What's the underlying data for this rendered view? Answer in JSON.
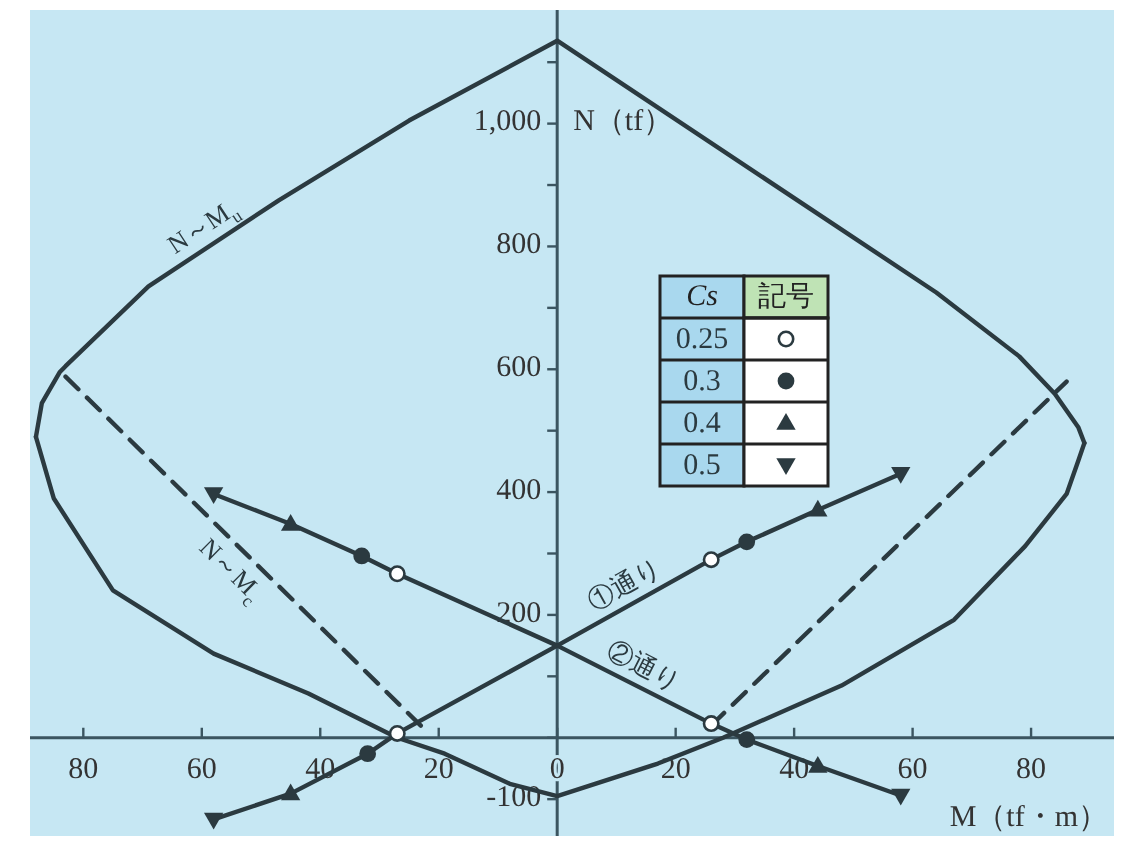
{
  "chart_data": {
    "type": "line",
    "xlabel": "M（tf・m）",
    "ylabel": "N（tf）",
    "legend_title": "Cs",
    "legend": "right",
    "annotations": [
      "記号"
    ],
    "xlim": [
      -89,
      94
    ],
    "ylim": [
      -160,
      1185
    ],
    "xticks": [
      {
        "value": -80,
        "label": "80"
      },
      {
        "value": -60,
        "label": "60"
      },
      {
        "value": -40,
        "label": "40"
      },
      {
        "value": -20,
        "label": "20"
      },
      0,
      20,
      40,
      60,
      80
    ],
    "yticks": [
      -100,
      {
        "value": 0,
        "label": null
      },
      {
        "value": 100,
        "label": null
      },
      200,
      {
        "value": 300,
        "label": null
      },
      400,
      {
        "value": 500,
        "label": null
      },
      600,
      {
        "value": 700,
        "label": null
      },
      800,
      {
        "value": 900,
        "label": null
      },
      {
        "value": 1000,
        "label": "1,000"
      },
      {
        "value": 1100,
        "label": null
      }
    ],
    "grid": false,
    "series": [
      {
        "name": "N～M$_{u}$",
        "color": "#2b3a40",
        "line_style": "solid",
        "marker": "none",
        "x": [
          -88,
          -87,
          -84,
          -83,
          -69,
          -47,
          -25,
          0,
          64,
          78,
          84,
          88,
          89
        ],
        "values": [
          490,
          545,
          595,
          605,
          735,
          875,
          1005,
          1135,
          725,
          621,
          560,
          505,
          480
        ]
      },
      {
        "color": "#2b3a40",
        "line_style": "solid",
        "marker": "none",
        "x": [
          -88,
          -85,
          -75,
          -58,
          -42,
          -27,
          -19,
          -8,
          0,
          17,
          28,
          48,
          67,
          79,
          86,
          88,
          89
        ],
        "values": [
          490,
          390,
          240,
          137,
          72,
          0,
          -26,
          -75,
          -95,
          -42,
          0,
          85,
          192,
          312,
          397,
          452,
          480
        ]
      },
      {
        "name": "N～M$_{c}$",
        "color": "#2b3a40",
        "line_style": "dashed",
        "marker": "none",
        "x": [
          -83,
          -22,
          0,
          26,
          86
        ],
        "values": [
          588,
          10,
          null,
          20,
          580
        ]
      },
      {
        "name": "①通り",
        "color": "#2b3a40",
        "line_style": "solid",
        "marker": "none",
        "x": [
          -58,
          -45,
          -32,
          -27,
          0,
          26,
          32,
          44,
          58
        ],
        "values": [
          -133,
          -91,
          -26,
          7,
          150,
          290,
          319,
          371,
          430
        ]
      },
      {
        "name": "②通り",
        "color": "#2b3a40",
        "line_style": "solid",
        "marker": "none",
        "x": [
          -58,
          -45,
          -33,
          -27,
          0,
          26,
          32,
          44,
          58
        ],
        "values": [
          397,
          348,
          296,
          267,
          150,
          23,
          -3,
          -46,
          -94
        ]
      },
      {
        "name": "0.25",
        "type": "scatter",
        "color": "#2b3a40",
        "marker": "circle-open",
        "x": [
          -27,
          26,
          -27,
          26
        ],
        "values": [
          7,
          290,
          267,
          23
        ]
      },
      {
        "name": "0.3",
        "type": "scatter",
        "color": "#2b3a40",
        "marker": "circle",
        "x": [
          -32,
          32,
          -33,
          32
        ],
        "values": [
          -26,
          319,
          296,
          -3
        ]
      },
      {
        "name": "0.4",
        "type": "scatter",
        "color": "#2b3a40",
        "marker": "triangle",
        "x": [
          -45,
          44,
          -45,
          44
        ],
        "values": [
          -91,
          371,
          348,
          -46
        ]
      },
      {
        "name": "0.5",
        "type": "scatter",
        "color": "#2b3a40",
        "marker": "triangle-down",
        "x": [
          -58,
          58,
          -58,
          58
        ],
        "values": [
          -133,
          430,
          397,
          -94
        ]
      }
    ]
  }
}
